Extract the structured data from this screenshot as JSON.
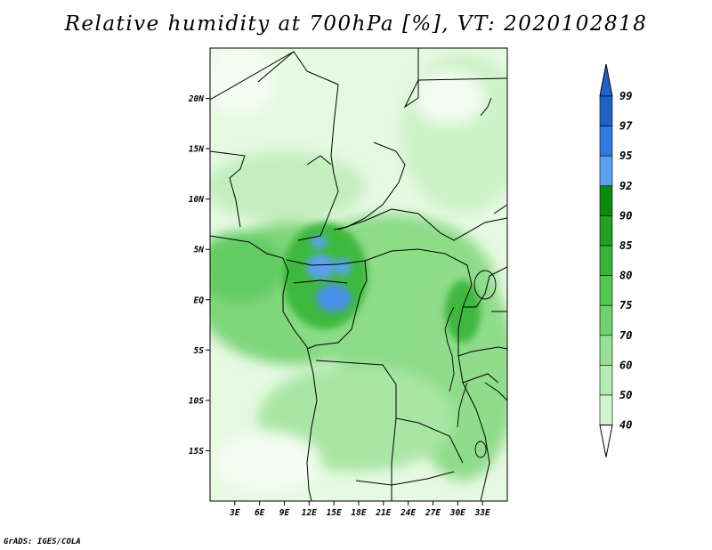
{
  "title": "Relative humidity at 700hPa [%], VT: 2020102818",
  "credit": "GrADS: IGES/COLA",
  "map": {
    "region": "Central Africa",
    "lon_range": [
      0,
      36
    ],
    "lat_range": [
      -20,
      25
    ],
    "lat_ticks": [
      {
        "lat": 20,
        "label": "20N"
      },
      {
        "lat": 15,
        "label": "15N"
      },
      {
        "lat": 10,
        "label": "10N"
      },
      {
        "lat": 5,
        "label": "5N"
      },
      {
        "lat": 0,
        "label": "EQ"
      },
      {
        "lat": -5,
        "label": "5S"
      },
      {
        "lat": -10,
        "label": "10S"
      },
      {
        "lat": -15,
        "label": "15S"
      }
    ],
    "lon_ticks": [
      {
        "lon": 3,
        "label": "3E"
      },
      {
        "lon": 6,
        "label": "6E"
      },
      {
        "lon": 9,
        "label": "9E"
      },
      {
        "lon": 12,
        "label": "12E"
      },
      {
        "lon": 15,
        "label": "15E"
      },
      {
        "lon": 18,
        "label": "18E"
      },
      {
        "lon": 21,
        "label": "21E"
      },
      {
        "lon": 24,
        "label": "24E"
      },
      {
        "lon": 27,
        "label": "27E"
      },
      {
        "lon": 30,
        "label": "30E"
      },
      {
        "lon": 33,
        "label": "33E"
      }
    ]
  },
  "colorbar": {
    "labels": [
      "99",
      "97",
      "95",
      "92",
      "90",
      "85",
      "80",
      "75",
      "70",
      "60",
      "50",
      "40"
    ],
    "colors": [
      "#1e64c8",
      "#2e7ae0",
      "#5aa0f0",
      "#0c8c0c",
      "#23a023",
      "#37b437",
      "#4ec84e",
      "#6ed26e",
      "#96e096",
      "#b4ecb4",
      "#d0f4d0",
      "#eafbe6"
    ]
  }
}
